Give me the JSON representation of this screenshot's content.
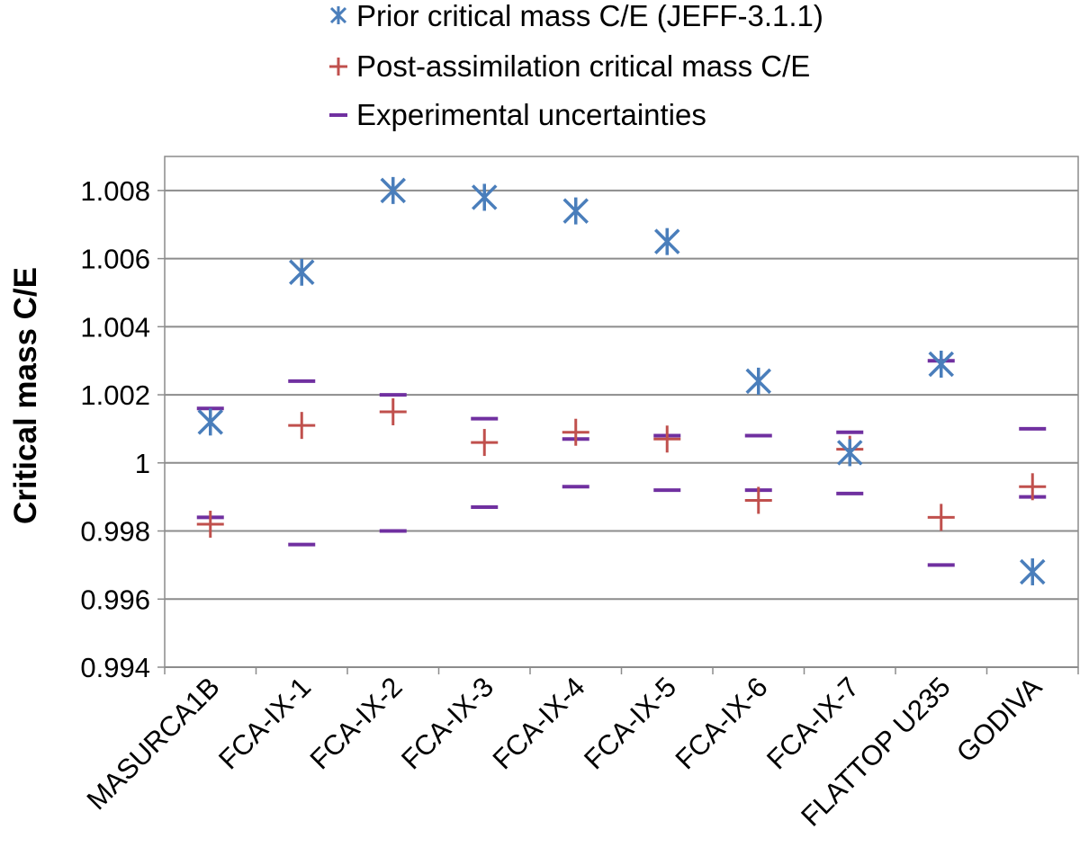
{
  "chart_data": {
    "type": "scatter",
    "categories": [
      "MASURCA1B",
      "FCA-IX-1",
      "FCA-IX-2",
      "FCA-IX-3",
      "FCA-IX-4",
      "FCA-IX-5",
      "FCA-IX-6",
      "FCA-IX-7",
      "FLATTOP U235",
      "GODIVA"
    ],
    "ylabel": "Critical mass C/E",
    "ylim": [
      0.994,
      1.009
    ],
    "yticks": [
      "0.994",
      "0.996",
      "0.998",
      "1",
      "1.002",
      "1.004",
      "1.006",
      "1.008"
    ],
    "ytick_values": [
      0.994,
      0.996,
      0.998,
      1.0,
      1.002,
      1.004,
      1.006,
      1.008
    ],
    "grid": true,
    "legend_position": "top",
    "series": [
      {
        "name": "Prior critical mass C/E (JEFF-3.1.1)",
        "marker": "asterisk",
        "color": "#4a7ebb",
        "values": [
          1.0012,
          1.0056,
          1.008,
          1.0078,
          1.0074,
          1.0065,
          1.0024,
          1.0003,
          1.0029,
          0.9968
        ]
      },
      {
        "name": "Post-assimilation critical mass C/E",
        "marker": "plus",
        "color": "#c0504d",
        "values": [
          0.9982,
          1.0011,
          1.0015,
          1.0006,
          1.0009,
          1.0007,
          0.9989,
          1.0004,
          0.9984,
          0.9993
        ]
      },
      {
        "name": "Experimental uncertainties",
        "marker": "dash",
        "color": "#7030a0",
        "upper": [
          1.0016,
          1.0024,
          1.002,
          1.0013,
          1.0007,
          1.0008,
          1.0008,
          1.0009,
          1.003,
          1.001
        ],
        "lower": [
          0.9984,
          0.9976,
          0.998,
          0.9987,
          0.9993,
          0.9992,
          0.9992,
          0.9991,
          0.997,
          0.999
        ]
      }
    ]
  }
}
